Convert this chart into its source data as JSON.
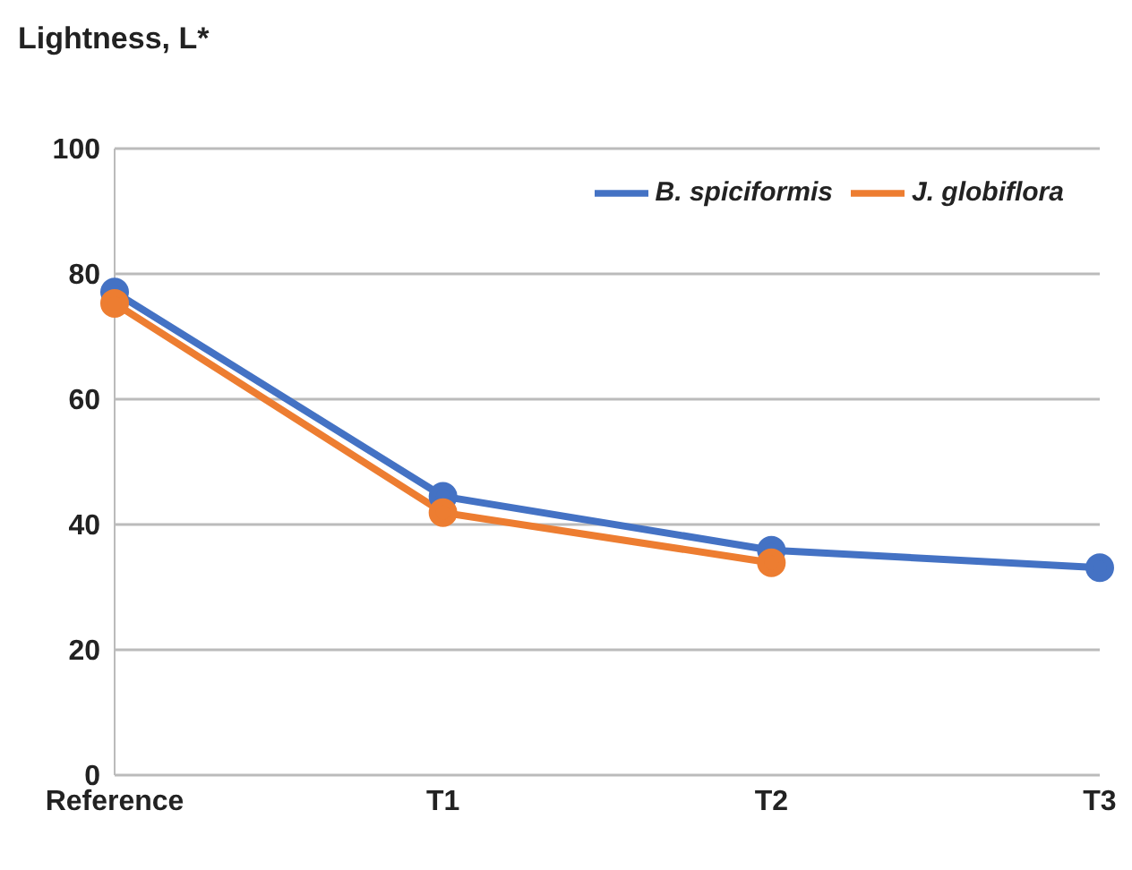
{
  "chart_data": {
    "type": "line",
    "title": "Lightness, L*",
    "categories": [
      "Reference",
      "T1",
      "T2",
      "T3"
    ],
    "series": [
      {
        "name": "B. spiciformis",
        "color": "#4472c4",
        "values": [
          77.1,
          44.5,
          35.9,
          33.1
        ]
      },
      {
        "name": "J. globiflora",
        "color": "#ed7d31",
        "values": [
          75.3,
          41.9,
          33.9,
          null
        ]
      }
    ],
    "ylim": [
      0,
      100
    ],
    "yticks": [
      0,
      20,
      40,
      60,
      80,
      100
    ],
    "grid": "y",
    "legend": "top right",
    "marker": "circle",
    "line_style": "solid"
  }
}
